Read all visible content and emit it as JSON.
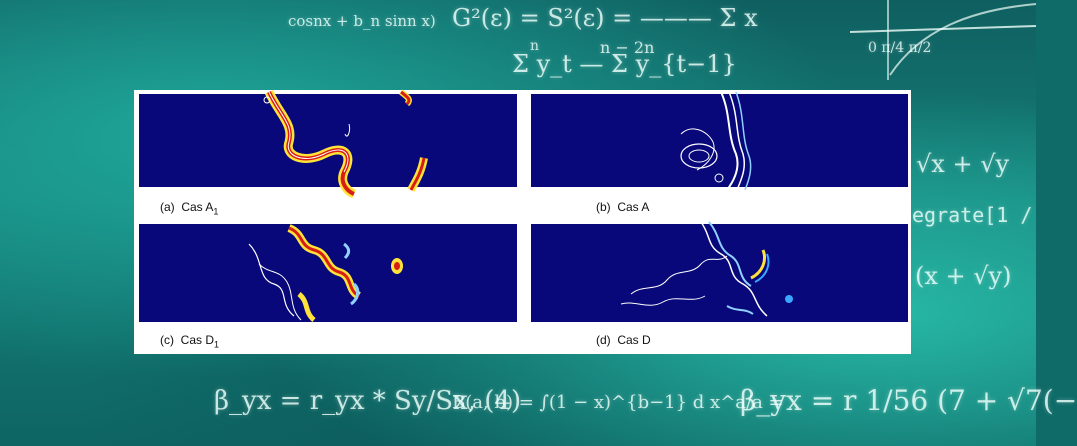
{
  "background": {
    "formulas": [
      "cosnx + b_n sinn x)",
      "G²(ε) = S²(ε) = ——— Σ x",
      "n − 2n",
      "n",
      "Σ y_t   —   Σ y_{t−1}",
      "0   π/4   π/2",
      "√x + √y",
      "egrate[1 /",
      "(x + √y)",
      "β_yx = r_yx * Sy/Sx, (4)",
      "B(a, b) = ∫(1 − x)^{b−1} d x^a/a =",
      "β_yx = r 1/56 (7 + √7(−"
    ],
    "color": "#0e6b68"
  },
  "figure": {
    "panels": [
      {
        "letter": "(a)",
        "label": "Cas A",
        "sub": "1"
      },
      {
        "letter": "(b)",
        "label": "Cas A",
        "sub": ""
      },
      {
        "letter": "(c)",
        "label": "Cas D",
        "sub": "1"
      },
      {
        "letter": "(d)",
        "label": "Cas D",
        "sub": ""
      }
    ],
    "field_color": "#08087a"
  }
}
